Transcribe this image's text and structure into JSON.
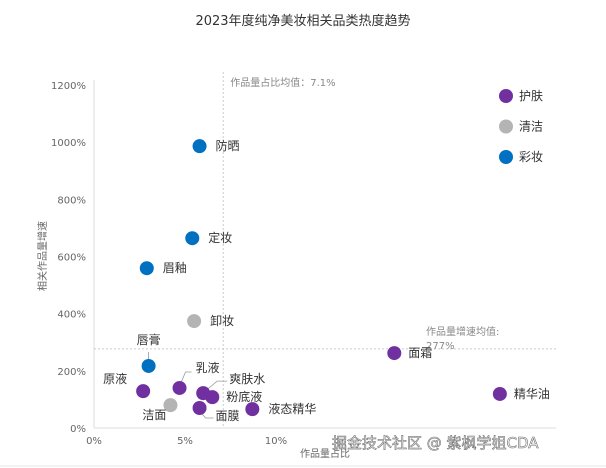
{
  "chart_data": {
    "type": "scatter",
    "title": "2023年度纯净美妆相关品类热度趋势",
    "xlabel": "作品量占比",
    "ylabel": "相关作品量增速",
    "xlim": [
      0,
      25
    ],
    "ylim": [
      0,
      1200
    ],
    "xticks": [
      "0%",
      "5%",
      "10%"
    ],
    "xtick_values": [
      0,
      5,
      10
    ],
    "yticks": [
      "0%",
      "200%",
      "400%",
      "600%",
      "800%",
      "1000%",
      "1200%"
    ],
    "ytick_values": [
      0,
      200,
      400,
      600,
      800,
      1000,
      1200
    ],
    "legend_position": "top-right",
    "series": [
      {
        "name": "护肤",
        "color": "#7030a0",
        "points": [
          {
            "label": "乳液",
            "x": 4.7,
            "y": 140
          },
          {
            "label": "原液",
            "x": 2.7,
            "y": 129
          },
          {
            "label": "爽肤水",
            "x": 6.0,
            "y": 122
          },
          {
            "label": "粉底液",
            "x": 6.5,
            "y": 108
          },
          {
            "label": "面膜",
            "x": 5.8,
            "y": 70
          },
          {
            "label": "液态精华",
            "x": 8.7,
            "y": 66
          },
          {
            "label": "面霜",
            "x": 16.5,
            "y": 262
          },
          {
            "label": "精华油",
            "x": 22.3,
            "y": 119
          }
        ]
      },
      {
        "name": "清洁",
        "color": "#b4b4b4",
        "points": [
          {
            "label": "卸妆",
            "x": 5.5,
            "y": 374
          },
          {
            "label": "洁面",
            "x": 4.2,
            "y": 80
          }
        ]
      },
      {
        "name": "彩妆",
        "color": "#0070c0",
        "points": [
          {
            "label": "防晒",
            "x": 5.8,
            "y": 986
          },
          {
            "label": "定妆",
            "x": 5.4,
            "y": 664
          },
          {
            "label": "眉釉",
            "x": 2.9,
            "y": 559
          },
          {
            "label": "唇膏",
            "x": 3.0,
            "y": 217
          }
        ]
      }
    ],
    "reference_lines": [
      {
        "axis": "x",
        "value": 7.1,
        "label": "作品量占比均值：7.1%"
      },
      {
        "axis": "y",
        "value": 277,
        "label1": "作品量增速均值:",
        "label2": "277%"
      }
    ]
  },
  "watermark": "掘金技术社区 @ 紫枫学姐CDA"
}
